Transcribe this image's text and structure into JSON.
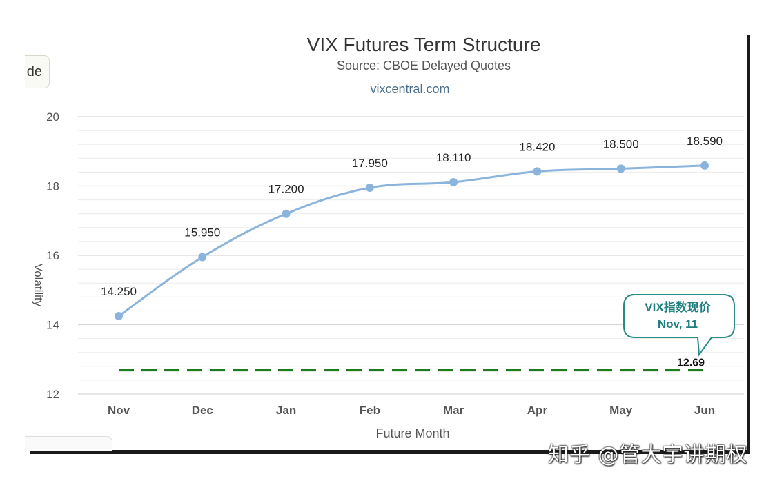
{
  "side_button": {
    "label": "de"
  },
  "watermark": "知乎 @管大宇讲期权",
  "chart_data": {
    "type": "line",
    "title": "VIX Futures Term Structure",
    "subtitle": "Source: CBOE Delayed Quotes",
    "credit": "vixcentral.com",
    "xlabel": "Future Month",
    "ylabel": "Volatility",
    "categories": [
      "Nov",
      "Dec",
      "Jan",
      "Feb",
      "Mar",
      "Apr",
      "May",
      "Jun"
    ],
    "series": [
      {
        "values": [
          14.25,
          15.95,
          17.2,
          17.95,
          18.11,
          18.42,
          18.5,
          18.59
        ],
        "data_labels": [
          "14.250",
          "15.950",
          "17.200",
          "17.950",
          "18.110",
          "18.420",
          "18.500",
          "18.590"
        ],
        "color": "#8bb4dc"
      }
    ],
    "reference_line": {
      "value": 12.69,
      "label": "12.69",
      "color": "#1e7a1e",
      "style": "dashed"
    },
    "callout": {
      "line1": "VIX指数现价",
      "line2": "Nov, 11",
      "color": "#2a8a8a"
    },
    "ylim": [
      12,
      20
    ],
    "yticks": [
      12,
      14,
      16,
      18,
      20
    ],
    "grid": true,
    "legend": "none"
  }
}
